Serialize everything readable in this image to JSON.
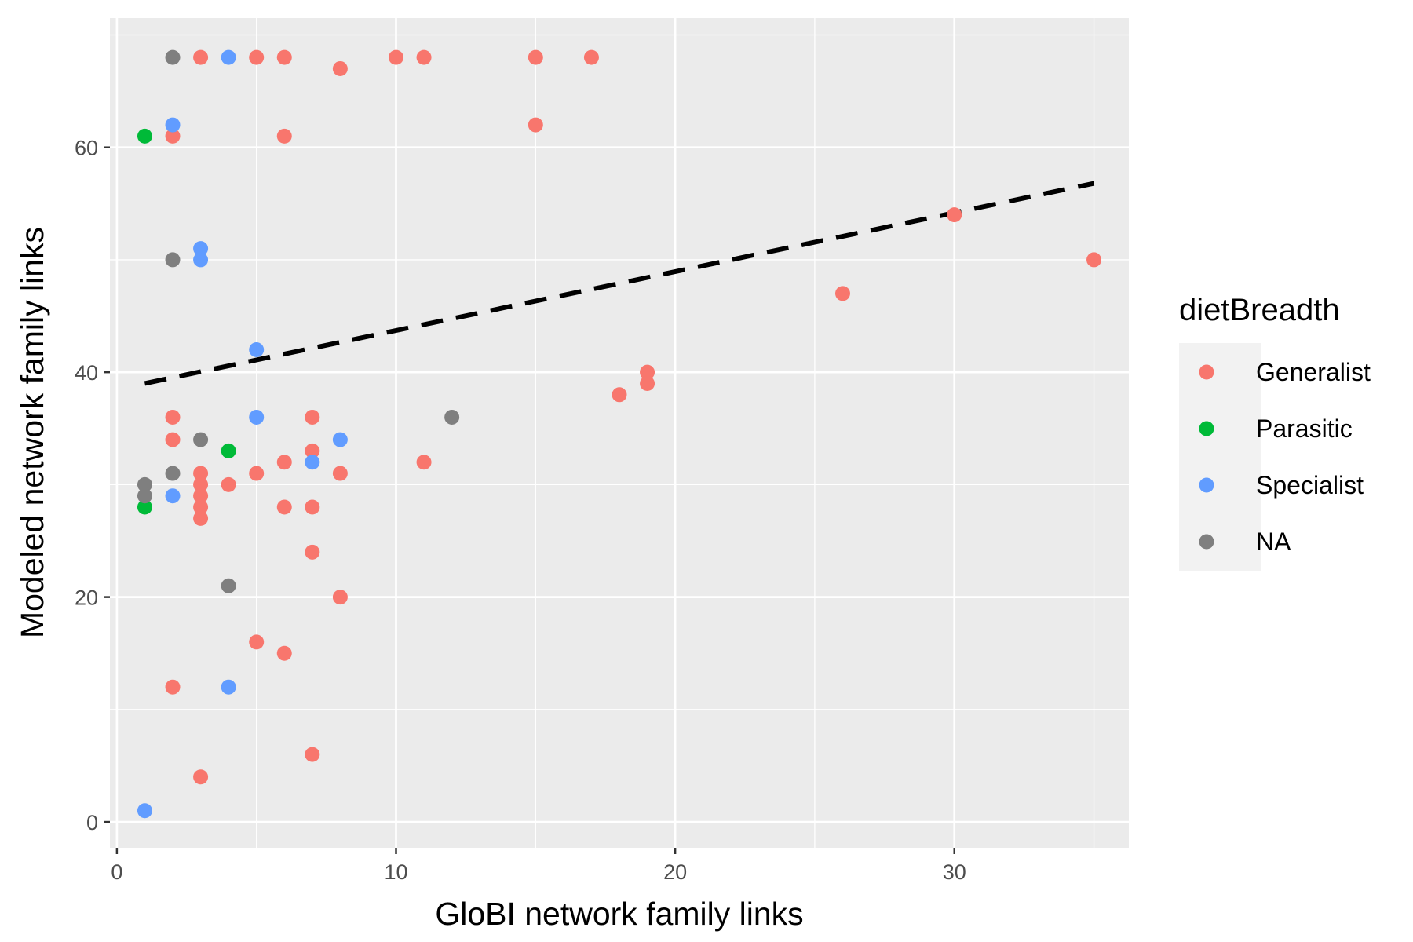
{
  "chart_data": {
    "type": "scatter",
    "title": "",
    "xlabel": "GloBI network family links",
    "ylabel": "Modeled network family links",
    "xlim": [
      -0.25,
      36.25
    ],
    "ylim": [
      -2.3,
      71.5
    ],
    "x_ticks": [
      0,
      10,
      20,
      30
    ],
    "y_ticks": [
      0,
      20,
      40,
      60
    ],
    "grid": true,
    "legend": {
      "title": "dietBreadth",
      "position": "right",
      "entries": [
        {
          "label": "Generalist",
          "color": "#F8766D"
        },
        {
          "label": "Parasitic",
          "color": "#00BA38"
        },
        {
          "label": "Specialist",
          "color": "#619CFF"
        },
        {
          "label": "NA",
          "color": "#7F7F7F"
        }
      ]
    },
    "series": [
      {
        "name": "Generalist",
        "color": "#F8766D",
        "points": [
          [
            3,
            68
          ],
          [
            5,
            68
          ],
          [
            6,
            68
          ],
          [
            8,
            67
          ],
          [
            10,
            68
          ],
          [
            11,
            68
          ],
          [
            15,
            68
          ],
          [
            17,
            68
          ],
          [
            15,
            62
          ],
          [
            2,
            61
          ],
          [
            6,
            61
          ],
          [
            30,
            54
          ],
          [
            35,
            50
          ],
          [
            26,
            47
          ],
          [
            19,
            40
          ],
          [
            19,
            39
          ],
          [
            18,
            38
          ],
          [
            2,
            36
          ],
          [
            7,
            36
          ],
          [
            2,
            34
          ],
          [
            7,
            33
          ],
          [
            6,
            32
          ],
          [
            11,
            32
          ],
          [
            3,
            31
          ],
          [
            5,
            31
          ],
          [
            8,
            31
          ],
          [
            3,
            30
          ],
          [
            4,
            30
          ],
          [
            3,
            29
          ],
          [
            3,
            28
          ],
          [
            6,
            28
          ],
          [
            7,
            28
          ],
          [
            3,
            27
          ],
          [
            7,
            24
          ],
          [
            8,
            20
          ],
          [
            5,
            16
          ],
          [
            6,
            15
          ],
          [
            2,
            12
          ],
          [
            7,
            6
          ],
          [
            3,
            4
          ]
        ]
      },
      {
        "name": "Parasitic",
        "color": "#00BA38",
        "points": [
          [
            1,
            61
          ],
          [
            4,
            33
          ],
          [
            1,
            28
          ]
        ]
      },
      {
        "name": "Specialist",
        "color": "#619CFF",
        "points": [
          [
            4,
            68
          ],
          [
            2,
            62
          ],
          [
            3,
            51
          ],
          [
            3,
            50
          ],
          [
            5,
            42
          ],
          [
            5,
            36
          ],
          [
            8,
            34
          ],
          [
            7,
            32
          ],
          [
            2,
            29
          ],
          [
            4,
            12
          ],
          [
            1,
            1
          ]
        ]
      },
      {
        "name": "NA",
        "color": "#7F7F7F",
        "points": [
          [
            2,
            68
          ],
          [
            2,
            50
          ],
          [
            12,
            36
          ],
          [
            3,
            34
          ],
          [
            2,
            31
          ],
          [
            1,
            30
          ],
          [
            1,
            29
          ],
          [
            4,
            21
          ]
        ]
      }
    ],
    "trend_line": {
      "style": "dashed",
      "color": "#000000",
      "points": [
        [
          1,
          39
        ],
        [
          35,
          56.8
        ]
      ]
    }
  }
}
